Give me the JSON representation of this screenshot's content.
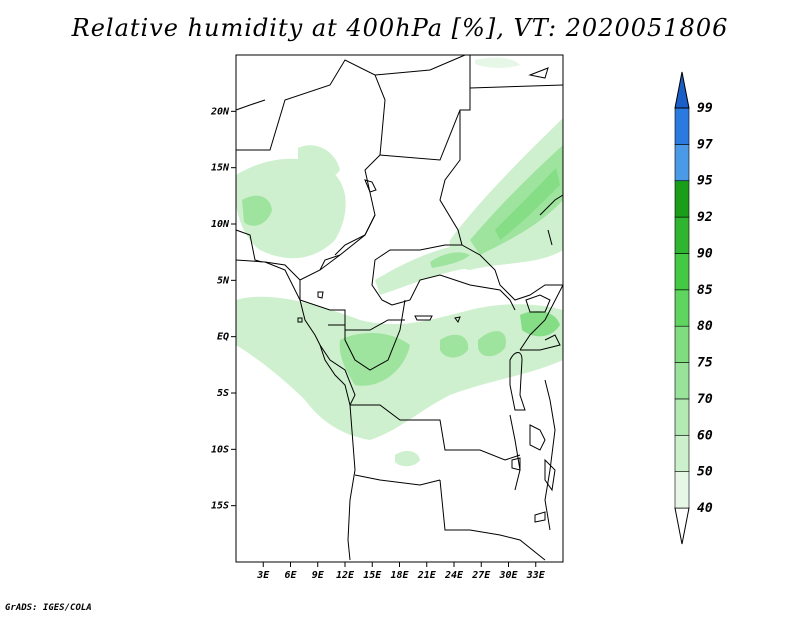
{
  "title": "Relative humidity at 400hPa [%], VT: 2020051806",
  "credit": "GrADS: IGES/COLA",
  "map": {
    "lon_range": [
      0,
      36
    ],
    "lat_range": [
      -20,
      25
    ],
    "lat_ticks": [
      {
        "value": 20,
        "label": "20N"
      },
      {
        "value": 15,
        "label": "15N"
      },
      {
        "value": 10,
        "label": "10N"
      },
      {
        "value": 5,
        "label": "5N"
      },
      {
        "value": 0,
        "label": "EQ"
      },
      {
        "value": -5,
        "label": "5S"
      },
      {
        "value": -10,
        "label": "10S"
      },
      {
        "value": -15,
        "label": "15S"
      }
    ],
    "lon_ticks": [
      {
        "value": 3,
        "label": "3E"
      },
      {
        "value": 6,
        "label": "6E"
      },
      {
        "value": 9,
        "label": "9E"
      },
      {
        "value": 12,
        "label": "12E"
      },
      {
        "value": 15,
        "label": "15E"
      },
      {
        "value": 18,
        "label": "18E"
      },
      {
        "value": 21,
        "label": "21E"
      },
      {
        "value": 24,
        "label": "24E"
      },
      {
        "value": 27,
        "label": "27E"
      },
      {
        "value": 30,
        "label": "30E"
      },
      {
        "value": 33,
        "label": "33E"
      }
    ]
  },
  "colorbar": {
    "levels": [
      {
        "value": "40",
        "color": "#e6f7e6"
      },
      {
        "value": "50",
        "color": "#ccf0cc"
      },
      {
        "value": "60",
        "color": "#b3e9b3"
      },
      {
        "value": "70",
        "color": "#99e299"
      },
      {
        "value": "75",
        "color": "#7fdc7f"
      },
      {
        "value": "80",
        "color": "#5fd45f"
      },
      {
        "value": "85",
        "color": "#44c944"
      },
      {
        "value": "90",
        "color": "#2fb52f"
      },
      {
        "value": "92",
        "color": "#1a9e1a"
      },
      {
        "value": "95",
        "color": "#4a9ae8"
      },
      {
        "value": "97",
        "color": "#2a7ae0"
      },
      {
        "value": "99",
        "color": "#1a5ec8"
      }
    ],
    "bottom_triangle_color": "#ffffff"
  }
}
